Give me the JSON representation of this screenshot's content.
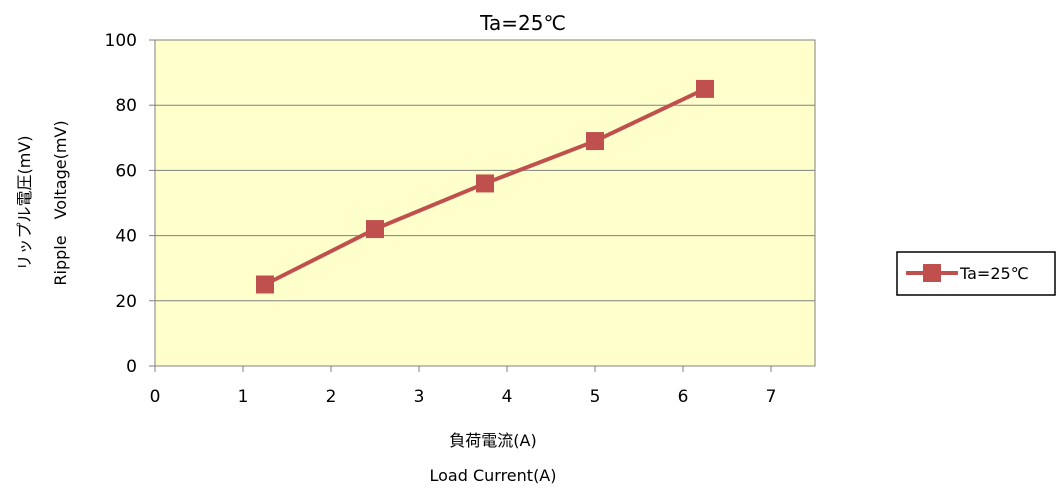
{
  "chart_data": {
    "type": "line",
    "title": "Ta=25℃",
    "xlabel_line1": "負荷電流(A)",
    "xlabel_line2": "Load Current(A)",
    "ylabel_line1": "リップル電圧(mV)",
    "ylabel_line2": "Ripple　Voltage(mV)",
    "xlim": [
      0,
      7.5
    ],
    "ylim": [
      0,
      100
    ],
    "x_ticks": [
      "0",
      "1",
      "2",
      "3",
      "4",
      "5",
      "6",
      "7"
    ],
    "y_ticks": [
      "0",
      "20",
      "40",
      "60",
      "80",
      "100"
    ],
    "grid": true,
    "legend_position": "right",
    "series": [
      {
        "name": "Ta=25℃",
        "x": [
          1.25,
          2.5,
          3.75,
          5.0,
          6.25
        ],
        "y": [
          25,
          42,
          56,
          69,
          85
        ],
        "color": "#c0504d"
      }
    ],
    "plot_background": "#ffffcc"
  }
}
